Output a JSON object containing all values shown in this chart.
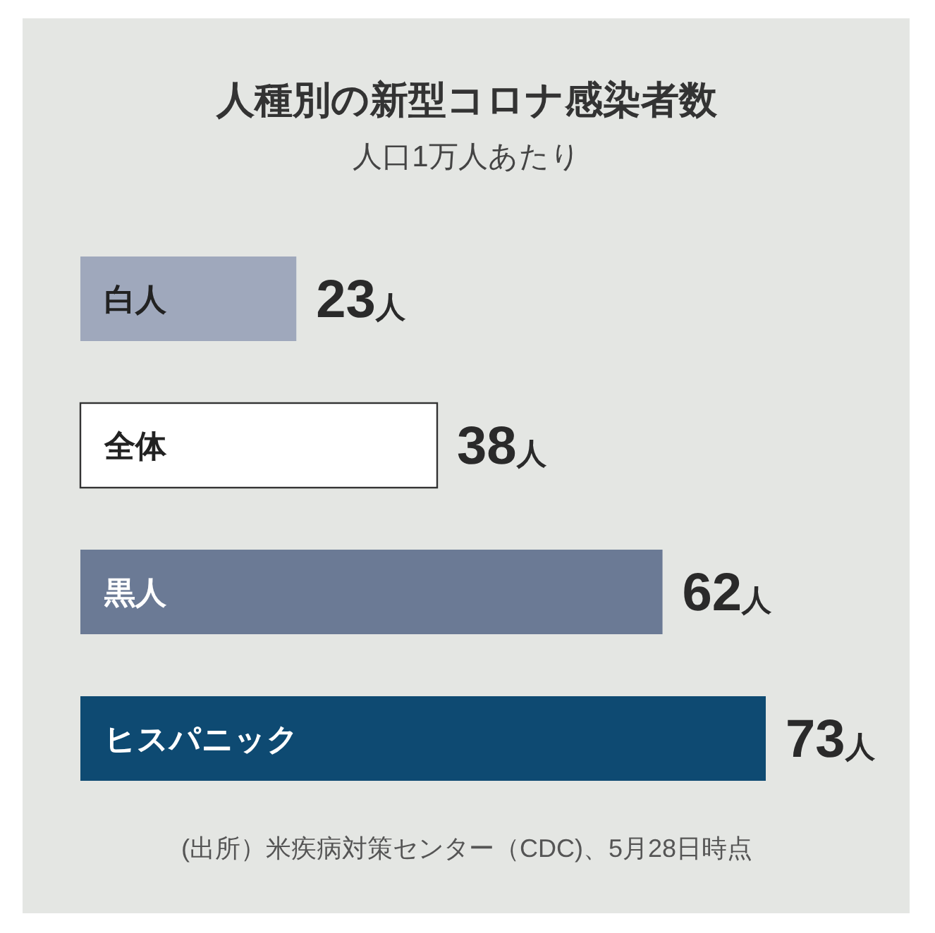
{
  "chart_data": {
    "type": "bar",
    "orientation": "horizontal",
    "title": "人種別の新型コロナ感染者数",
    "subtitle": "人口1万人あたり",
    "categories": [
      "白人",
      "全体",
      "黒人",
      "ヒスパニック"
    ],
    "values": [
      23,
      38,
      62,
      73
    ],
    "colors": [
      "#9fa8bc",
      "#ffffff",
      "#6b7a95",
      "#0e4a72"
    ],
    "value_labels": [
      "23人",
      "38人",
      "62人",
      "73人"
    ],
    "annotations": [
      "(出所）米疾病対策センター（CDC)、5月28日時点"
    ]
  }
}
